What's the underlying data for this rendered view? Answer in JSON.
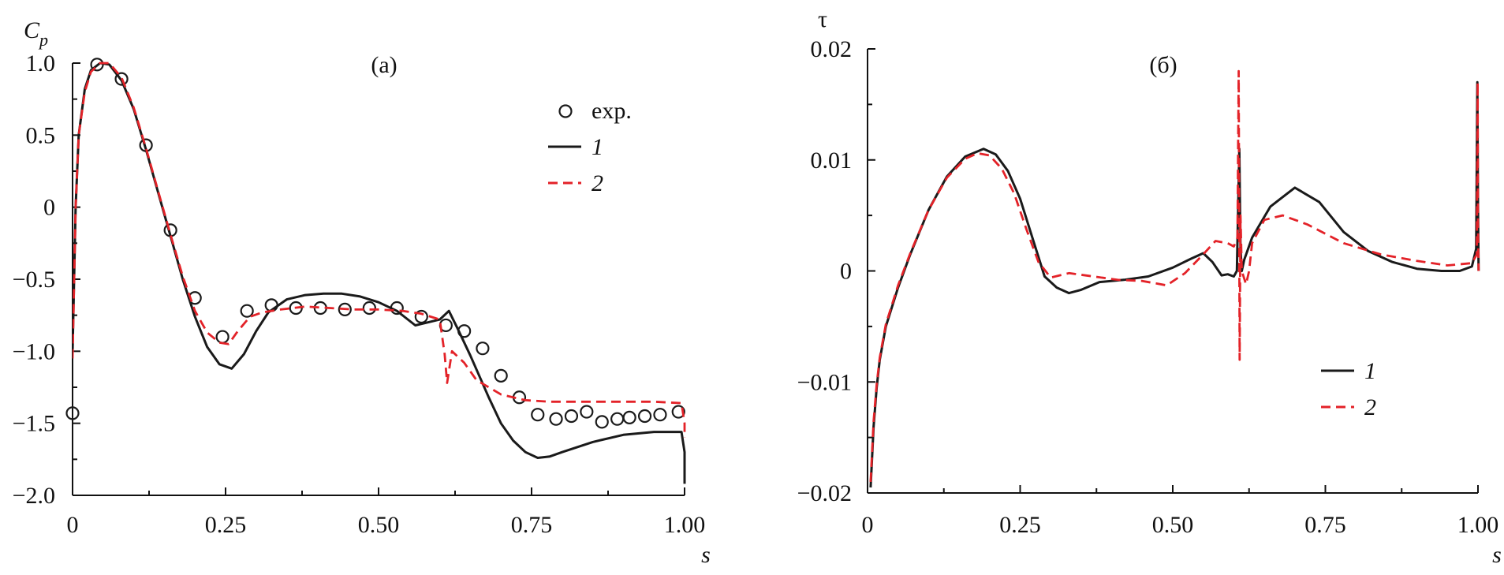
{
  "colors": {
    "black": "#1a1a1a",
    "red": "#e32228"
  },
  "chart_data": [
    {
      "type": "line",
      "panel_label": "(а)",
      "ylabel": "C",
      "ylabel_sub": "p",
      "xlabel": "s",
      "xlim": [
        0,
        1.0
      ],
      "ylim": [
        -2.0,
        1.0
      ],
      "xticks": [
        0,
        0.25,
        0.5,
        0.75,
        1.0
      ],
      "xtick_labels": [
        "0",
        "0.25",
        "0.50",
        "0.75",
        "1.00"
      ],
      "yticks": [
        1.0,
        0.5,
        0,
        -0.5,
        -1.0,
        -1.5,
        -2.0
      ],
      "ytick_labels": [
        "1.0",
        "0.5",
        "0",
        "−0.5",
        "−1.0",
        "−1.5",
        "−2.0"
      ],
      "legend": {
        "placement": "top-right",
        "entries": [
          "exp.",
          "1",
          "2"
        ]
      },
      "series": [
        {
          "name": "exp.",
          "style": "markers",
          "x": [
            0.0,
            0.04,
            0.08,
            0.12,
            0.16,
            0.2,
            0.245,
            0.285,
            0.325,
            0.365,
            0.405,
            0.445,
            0.485,
            0.53,
            0.57,
            0.61,
            0.64,
            0.67,
            0.7,
            0.73,
            0.76,
            0.79,
            0.815,
            0.84,
            0.865,
            0.89,
            0.91,
            0.935,
            0.96,
            0.99
          ],
          "y": [
            -1.43,
            0.99,
            0.89,
            0.43,
            -0.16,
            -0.63,
            -0.9,
            -0.72,
            -0.68,
            -0.7,
            -0.7,
            -0.71,
            -0.7,
            -0.7,
            -0.76,
            -0.82,
            -0.86,
            -0.98,
            -1.17,
            -1.32,
            -1.44,
            -1.47,
            -1.45,
            -1.42,
            -1.49,
            -1.47,
            -1.46,
            -1.45,
            -1.44,
            -1.42
          ]
        },
        {
          "name": "1",
          "style": "solid",
          "color": "#1a1a1a",
          "x": [
            0.0,
            0.005,
            0.01,
            0.02,
            0.03,
            0.045,
            0.06,
            0.08,
            0.1,
            0.12,
            0.14,
            0.16,
            0.18,
            0.2,
            0.22,
            0.24,
            0.26,
            0.28,
            0.3,
            0.32,
            0.35,
            0.38,
            0.41,
            0.44,
            0.47,
            0.5,
            0.53,
            0.56,
            0.58,
            0.6,
            0.615,
            0.63,
            0.65,
            0.68,
            0.7,
            0.72,
            0.74,
            0.76,
            0.78,
            0.8,
            0.85,
            0.9,
            0.95,
            0.995,
            1.0,
            1.0
          ],
          "y": [
            -1.0,
            0.0,
            0.5,
            0.82,
            0.95,
            1.0,
            0.99,
            0.88,
            0.68,
            0.4,
            0.1,
            -0.2,
            -0.5,
            -0.76,
            -0.97,
            -1.09,
            -1.12,
            -1.02,
            -0.86,
            -0.73,
            -0.64,
            -0.61,
            -0.6,
            -0.6,
            -0.62,
            -0.66,
            -0.72,
            -0.82,
            -0.8,
            -0.78,
            -0.72,
            -0.85,
            -1.03,
            -1.32,
            -1.5,
            -1.62,
            -1.7,
            -1.74,
            -1.73,
            -1.7,
            -1.63,
            -1.58,
            -1.56,
            -1.56,
            -1.7,
            -1.92
          ]
        },
        {
          "name": "2",
          "style": "dashed",
          "color": "#e32228",
          "x": [
            0.0,
            0.005,
            0.01,
            0.02,
            0.03,
            0.045,
            0.06,
            0.08,
            0.1,
            0.12,
            0.14,
            0.16,
            0.18,
            0.2,
            0.22,
            0.24,
            0.255,
            0.27,
            0.29,
            0.31,
            0.34,
            0.38,
            0.42,
            0.46,
            0.5,
            0.54,
            0.57,
            0.6,
            0.608,
            0.612,
            0.62,
            0.64,
            0.66,
            0.7,
            0.74,
            0.78,
            0.82,
            0.86,
            0.9,
            0.95,
            0.995,
            1.0,
            1.0
          ],
          "y": [
            -1.05,
            0.0,
            0.5,
            0.8,
            0.94,
            1.0,
            1.0,
            0.9,
            0.69,
            0.41,
            0.11,
            -0.19,
            -0.48,
            -0.72,
            -0.87,
            -0.94,
            -0.95,
            -0.86,
            -0.76,
            -0.73,
            -0.71,
            -0.69,
            -0.7,
            -0.71,
            -0.71,
            -0.72,
            -0.74,
            -0.78,
            -1.02,
            -1.22,
            -1.0,
            -1.08,
            -1.2,
            -1.3,
            -1.34,
            -1.35,
            -1.35,
            -1.35,
            -1.35,
            -1.35,
            -1.36,
            -1.5,
            -1.6
          ]
        }
      ]
    },
    {
      "type": "line",
      "panel_label": "(б)",
      "ylabel": "τ",
      "xlabel": "s",
      "xlim": [
        0,
        1.0
      ],
      "ylim": [
        -0.02,
        0.02
      ],
      "xticks": [
        0,
        0.25,
        0.5,
        0.75,
        1.0
      ],
      "xtick_labels": [
        "0",
        "0.25",
        "0.50",
        "0.75",
        "1.00"
      ],
      "yticks": [
        0.02,
        0.01,
        0,
        -0.01,
        -0.02
      ],
      "ytick_labels": [
        "0.02",
        "0.01",
        "0",
        "−0.01",
        "−0.02"
      ],
      "legend": {
        "placement": "bottom-right",
        "entries": [
          "1",
          "2"
        ]
      },
      "series": [
        {
          "name": "1",
          "style": "solid",
          "color": "#1a1a1a",
          "x": [
            0.005,
            0.01,
            0.015,
            0.02,
            0.03,
            0.05,
            0.07,
            0.1,
            0.13,
            0.16,
            0.19,
            0.21,
            0.23,
            0.25,
            0.27,
            0.29,
            0.31,
            0.33,
            0.35,
            0.38,
            0.42,
            0.46,
            0.5,
            0.53,
            0.55,
            0.565,
            0.58,
            0.59,
            0.6,
            0.605,
            0.609,
            0.611,
            0.613,
            0.617,
            0.63,
            0.66,
            0.7,
            0.74,
            0.78,
            0.82,
            0.86,
            0.9,
            0.94,
            0.97,
            0.99,
            0.997,
            0.999,
            1.0,
            1.001
          ],
          "y": [
            -0.0195,
            -0.014,
            -0.0105,
            -0.008,
            -0.005,
            -0.0015,
            0.0015,
            0.0055,
            0.0085,
            0.0103,
            0.011,
            0.0105,
            0.009,
            0.0065,
            0.003,
            -0.0005,
            -0.0015,
            -0.002,
            -0.0017,
            -0.001,
            -0.0008,
            -0.0005,
            0.0003,
            0.0011,
            0.0016,
            0.0008,
            -0.0004,
            -0.0003,
            -0.0005,
            0.0,
            0.011,
            0.002,
            0.0,
            0.001,
            0.003,
            0.0058,
            0.0075,
            0.0062,
            0.0035,
            0.0018,
            0.0008,
            0.0002,
            0.0,
            0.0,
            0.0004,
            0.002,
            0.017,
            0.006,
            0.0
          ]
        },
        {
          "name": "2",
          "style": "dashed",
          "color": "#e32228",
          "x": [
            0.005,
            0.01,
            0.015,
            0.02,
            0.03,
            0.05,
            0.07,
            0.1,
            0.13,
            0.16,
            0.18,
            0.2,
            0.22,
            0.24,
            0.26,
            0.28,
            0.3,
            0.33,
            0.37,
            0.41,
            0.45,
            0.49,
            0.52,
            0.55,
            0.57,
            0.59,
            0.6,
            0.606,
            0.608,
            0.6095,
            0.611,
            0.613,
            0.62,
            0.625,
            0.63,
            0.65,
            0.68,
            0.72,
            0.78,
            0.84,
            0.9,
            0.95,
            0.99,
            0.998,
            0.9995,
            1.0,
            1.001
          ],
          "y": [
            -0.019,
            -0.0135,
            -0.0102,
            -0.0078,
            -0.0048,
            -0.0013,
            0.0016,
            0.0055,
            0.0084,
            0.0101,
            0.0106,
            0.0104,
            0.0092,
            0.007,
            0.0038,
            0.0008,
            -0.0006,
            -0.0002,
            -0.0005,
            -0.0008,
            -0.0009,
            -0.0013,
            -0.0002,
            0.0015,
            0.0027,
            0.0025,
            0.0022,
            0.003,
            0.018,
            -0.008,
            0.005,
            0.0,
            -0.0012,
            0.0,
            0.0025,
            0.0046,
            0.005,
            0.0042,
            0.0025,
            0.0015,
            0.0009,
            0.0005,
            0.0007,
            0.0015,
            0.017,
            0.004,
            0.0
          ]
        }
      ]
    }
  ]
}
